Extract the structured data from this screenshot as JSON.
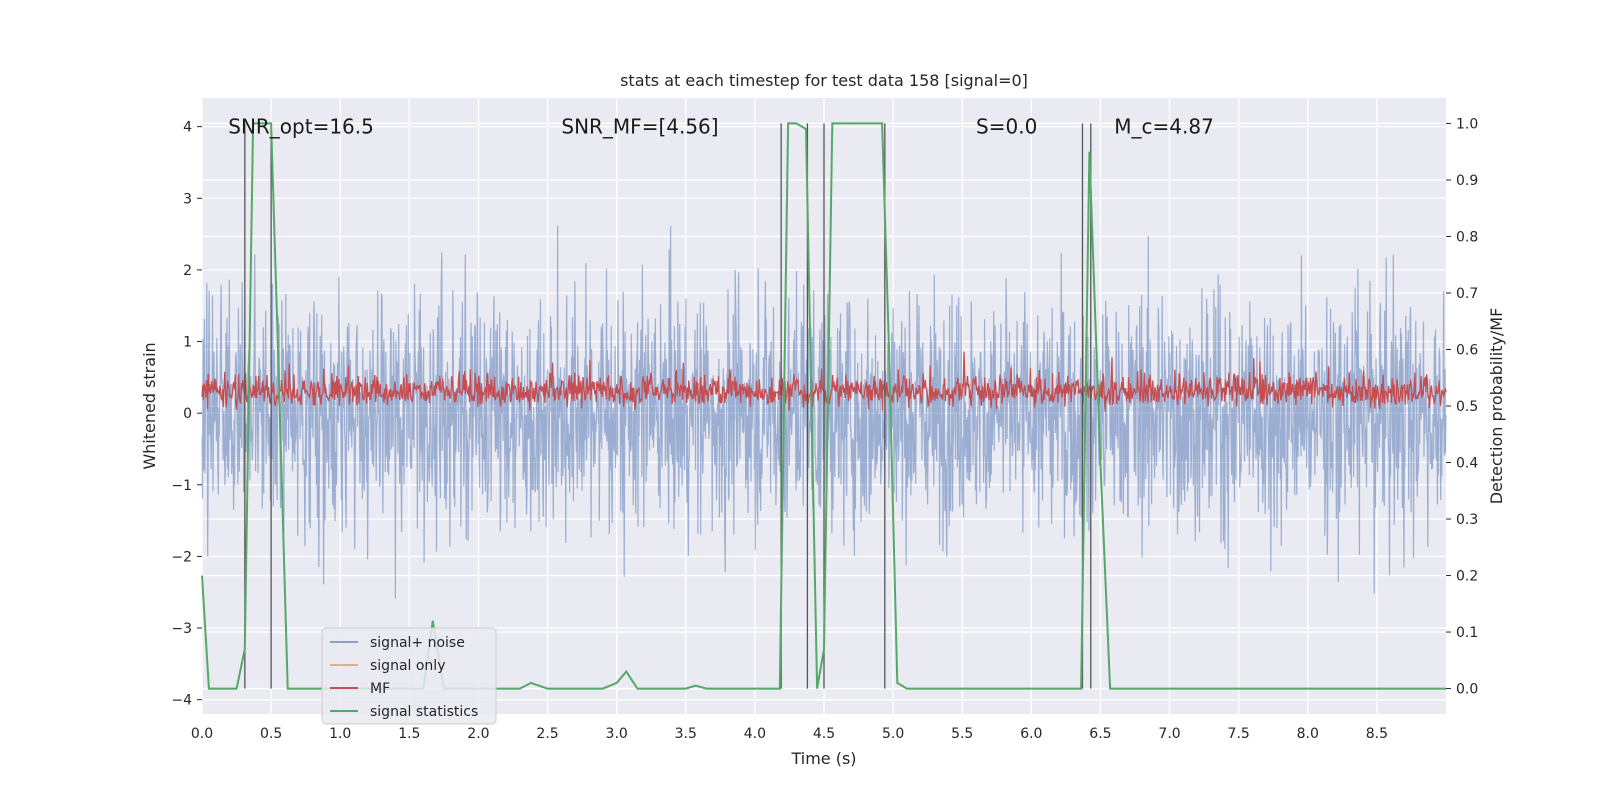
{
  "chart_data": {
    "type": "line",
    "title": "stats at each timestep for test data 158 [signal=0]",
    "xlabel": "Time (s)",
    "ylabel": "Whitened strain",
    "y2label": "Detection probability/MF",
    "xlim": [
      0,
      9.0
    ],
    "ylim": [
      -4.2,
      4.4
    ],
    "y2lim": [
      -0.045,
      1.045
    ],
    "xticks": [
      "0.0",
      "0.5",
      "1.0",
      "1.5",
      "2.0",
      "2.5",
      "3.0",
      "3.5",
      "4.0",
      "4.5",
      "5.0",
      "5.5",
      "6.0",
      "6.5",
      "7.0",
      "7.5",
      "8.0",
      "8.5"
    ],
    "yticks": [
      "−4",
      "−3",
      "−2",
      "−1",
      "0",
      "1",
      "2",
      "3",
      "4"
    ],
    "y2ticks": [
      "0.0",
      "0.1",
      "0.2",
      "0.3",
      "0.4",
      "0.5",
      "0.6",
      "0.7",
      "0.8",
      "0.9",
      "1.0"
    ],
    "grid": true,
    "legend_placement": "lower-left",
    "annotations": [
      {
        "text": "SNR_opt=16.5",
        "x": 0.19,
        "y": 4.0
      },
      {
        "text": "SNR_MF=[4.56]",
        "x": 2.6,
        "y": 4.0
      },
      {
        "text": "S=0.0",
        "x": 5.6,
        "y": 4.0
      },
      {
        "text": "M_c=4.87",
        "x": 6.6,
        "y": 4.0
      }
    ],
    "vertical_lines_x": [
      0.31,
      0.5,
      4.19,
      4.38,
      4.5,
      4.94,
      6.37,
      6.43
    ],
    "series": [
      {
        "name": "signal+ noise",
        "color": "#4C72B0",
        "axis": "left",
        "description": "whitened noise, amplitude ~±2.5 with spikes to ±3.5",
        "noise_amplitude": 2.0
      },
      {
        "name": "signal only",
        "color": "#DD8452",
        "axis": "left",
        "values_note": "flat near zero"
      },
      {
        "name": "MF",
        "color": "#C44E52",
        "axis": "right",
        "baseline": 0.5,
        "range": [
          0.49,
          0.6
        ]
      },
      {
        "name": "signal statistics",
        "color": "#55A868",
        "axis": "right",
        "x": [
          0.0,
          0.05,
          0.25,
          0.31,
          0.37,
          0.5,
          0.55,
          0.62,
          1.0,
          1.6,
          1.67,
          1.75,
          2.3,
          2.38,
          2.5,
          2.9,
          3.0,
          3.07,
          3.15,
          3.2,
          3.5,
          3.57,
          3.65,
          4.18,
          4.24,
          4.3,
          4.37,
          4.45,
          4.5,
          4.56,
          4.62,
          4.92,
          4.97,
          5.03,
          5.1,
          6.36,
          6.42,
          6.5,
          6.57,
          9.0
        ],
        "y": [
          0.2,
          0.0,
          0.0,
          0.07,
          1.0,
          1.0,
          0.6,
          0.0,
          0.0,
          0.0,
          0.12,
          0.0,
          0.0,
          0.01,
          0.0,
          0.0,
          0.01,
          0.03,
          0.0,
          0.0,
          0.0,
          0.005,
          0.0,
          0.0,
          1.0,
          1.0,
          0.99,
          0.0,
          0.07,
          1.0,
          1.0,
          1.0,
          0.6,
          0.01,
          0.0,
          0.0,
          0.95,
          0.4,
          0.0,
          0.0
        ]
      }
    ]
  }
}
